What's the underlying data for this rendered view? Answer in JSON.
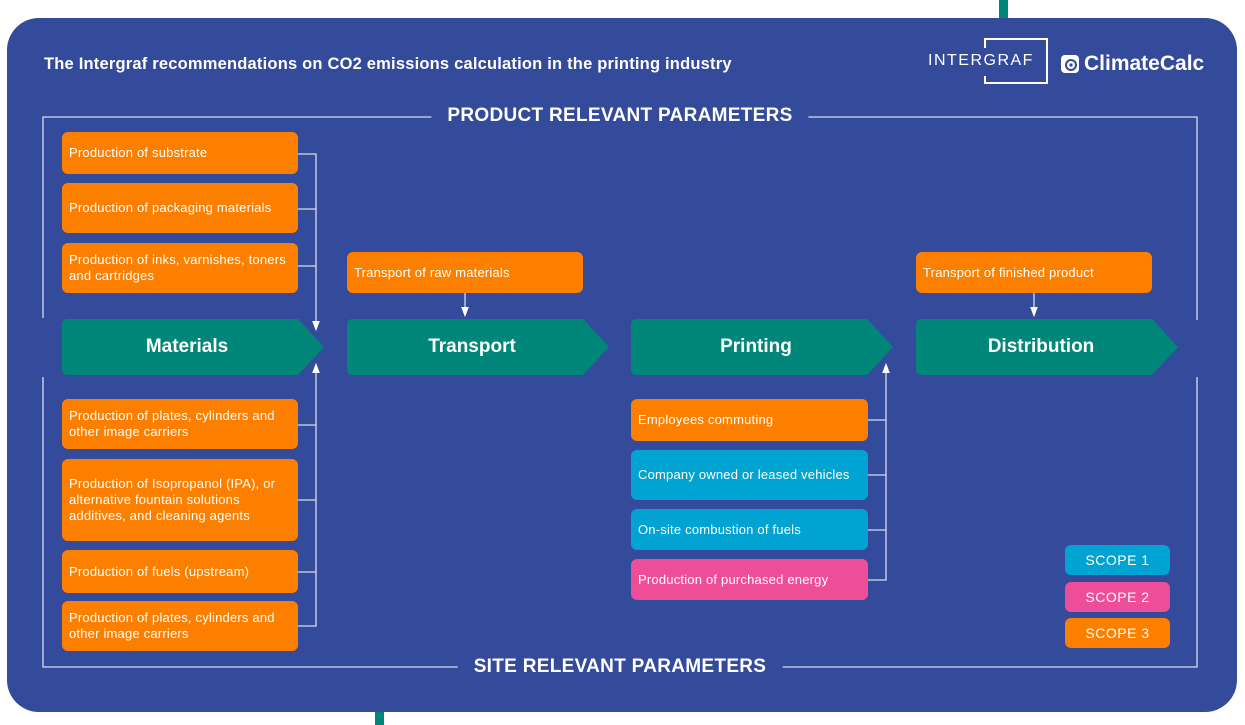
{
  "title": "The Intergraf recommendations on CO2 emissions calculation in the printing industry",
  "logos": {
    "intergraf": "INTERGRAF",
    "climatecalc": "ClimateCalc"
  },
  "sections": {
    "top": "PRODUCT RELEVANT PARAMETERS",
    "bottom": "SITE RELEVANT PARAMETERS"
  },
  "stages": [
    "Materials",
    "Transport",
    "Printing",
    "Distribution"
  ],
  "materials_product": [
    "Production of substrate",
    "Production of packaging materials",
    "Production of inks, varnishes, toners and cartridges"
  ],
  "materials_site": [
    "Production of plates, cylinders and other image carriers",
    "Production of Isopropanol (IPA), or alternative fountain solutions additives, and cleaning agents",
    "Production of fuels (upstream)",
    "Production of plates, cylinders and other image carriers"
  ],
  "transport_product": "Transport of raw materials",
  "distribution_product": "Transport of finished product",
  "printing_site": [
    "Employees commuting",
    "Company owned or leased vehicles",
    "On-site combustion of fuels",
    "Production of purchased energy"
  ],
  "legend": [
    "SCOPE 1",
    "SCOPE 2",
    "SCOPE 3"
  ],
  "colors": {
    "background": "#344a9a",
    "stage": "#00877a",
    "scope1": "#00a3d1",
    "scope2": "#ee4e98",
    "scope3": "#fd7f00"
  }
}
